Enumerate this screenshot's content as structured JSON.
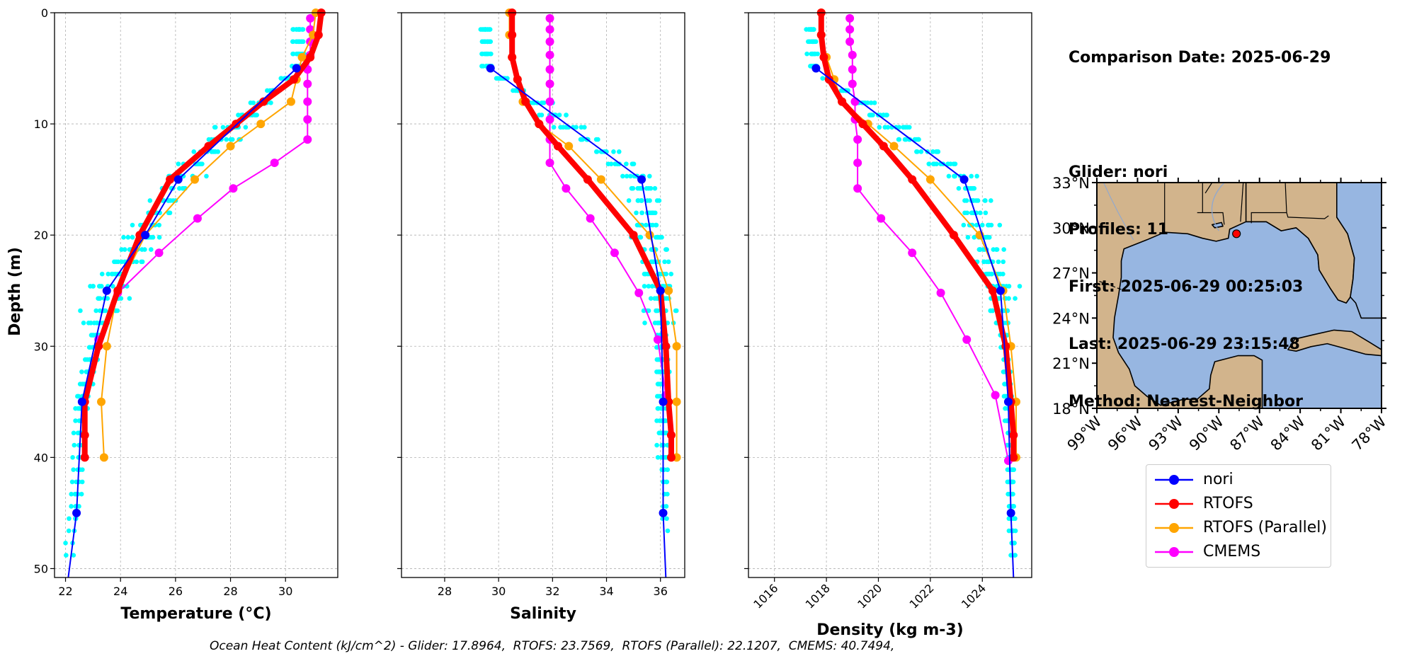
{
  "info": {
    "comparison_date": "Comparison Date: 2025-06-29",
    "glider": "Glider: nori",
    "profiles": "Profiles: 11",
    "first": "First: 2025-06-29 00:25:03",
    "last": "Last: 2025-06-29 23:15:48",
    "method": "Method: Nearest-Neighbor"
  },
  "footer": "Ocean Heat Content (kJ/cm^2) - Glider: 17.8964,  RTOFS: 23.7569,  RTOFS (Parallel): 22.1207,  CMEMS: 40.7494,",
  "legend": [
    {
      "name": "nori",
      "color": "#0000ff"
    },
    {
      "name": "RTOFS",
      "color": "#ff0000"
    },
    {
      "name": "RTOFS (Parallel)",
      "color": "#ffa500"
    },
    {
      "name": "CMEMS",
      "color": "#ff00ff"
    }
  ],
  "map": {
    "lat_ticks": [
      "33°N",
      "30°N",
      "27°N",
      "24°N",
      "21°N",
      "18°N"
    ],
    "lon_ticks": [
      "99°W",
      "96°W",
      "93°W",
      "90°W",
      "87°W",
      "84°W",
      "81°W",
      "78°W"
    ],
    "land_color": "#d2b48c",
    "ocean_color": "#97b6e1",
    "glider_marker": {
      "lon": -88.7,
      "lat": 29.6
    }
  },
  "chart_data": [
    {
      "type": "line",
      "xlabel": "Temperature (°C)",
      "ylabel": "Depth (m)",
      "xlim": [
        21.6,
        31.9
      ],
      "ylim": [
        50.8,
        0
      ],
      "xticks": [
        22,
        24,
        26,
        28,
        30
      ],
      "yticks": [
        0,
        10,
        20,
        30,
        40,
        50
      ],
      "grid": true,
      "series": [
        {
          "name": "nori",
          "x": [
            30.4,
            26.1,
            24.9,
            23.5,
            22.6,
            22.4,
            22.1
          ],
          "y": [
            5,
            15,
            20,
            25,
            35,
            45,
            50.8
          ]
        },
        {
          "name": "RTOFS",
          "x": [
            31.3,
            31.2,
            30.9,
            30.3,
            29.2,
            28.2,
            27.2,
            25.8,
            24.7,
            23.9,
            23.2,
            22.7,
            22.7,
            22.7
          ],
          "y": [
            0,
            2,
            4,
            6,
            8,
            10,
            12,
            15,
            20,
            25,
            30,
            35,
            38,
            40
          ]
        },
        {
          "name": "RTOFS (Parallel)",
          "x": [
            31.1,
            31.0,
            30.6,
            30.4,
            30.2,
            29.1,
            28.0,
            26.7,
            24.9,
            23.9,
            23.5,
            23.3,
            23.4
          ],
          "y": [
            0,
            2,
            4,
            6,
            8,
            10,
            12,
            15,
            20,
            25,
            30,
            35,
            40
          ]
        },
        {
          "name": "CMEMS",
          "x": [
            30.9,
            30.9,
            30.9,
            30.9,
            30.8,
            30.8,
            30.8,
            30.8,
            30.8,
            29.6,
            28.1,
            26.8,
            25.4,
            23.9,
            23.2
          ],
          "y": [
            0.5,
            1.5,
            2.6,
            3.8,
            5.1,
            6.4,
            8.0,
            9.6,
            11.4,
            13.5,
            15.8,
            18.5,
            21.6,
            25.2,
            29.4
          ]
        }
      ]
    },
    {
      "type": "line",
      "xlabel": "Salinity",
      "xlim": [
        26.4,
        36.9
      ],
      "ylim": [
        50.8,
        0
      ],
      "xticks": [
        28,
        30,
        32,
        34,
        36
      ],
      "grid": true,
      "series": [
        {
          "name": "nori",
          "x": [
            29.7,
            35.3,
            36.0,
            36.1,
            36.1,
            36.2
          ],
          "y": [
            5,
            15,
            25,
            35,
            45,
            50.8
          ]
        },
        {
          "name": "RTOFS",
          "x": [
            30.5,
            30.5,
            30.5,
            30.7,
            31.0,
            31.5,
            32.2,
            33.3,
            35.0,
            36.0,
            36.2,
            36.3,
            36.4,
            36.4
          ],
          "y": [
            0,
            2,
            4,
            6,
            8,
            10,
            12,
            15,
            20,
            25,
            30,
            35,
            38,
            40
          ]
        },
        {
          "name": "RTOFS (Parallel)",
          "x": [
            30.4,
            30.4,
            30.5,
            30.7,
            30.9,
            31.5,
            32.6,
            33.8,
            35.6,
            36.3,
            36.6,
            36.6,
            36.6
          ],
          "y": [
            0,
            2,
            4,
            6,
            8,
            10,
            12,
            15,
            20,
            25,
            30,
            35,
            40
          ]
        },
        {
          "name": "CMEMS",
          "x": [
            31.9,
            31.9,
            31.9,
            31.9,
            31.9,
            31.9,
            31.9,
            31.9,
            31.9,
            31.9,
            32.5,
            33.4,
            34.3,
            35.2,
            35.9,
            36.2
          ],
          "y": [
            0.5,
            1.5,
            2.6,
            3.8,
            5.1,
            6.4,
            8.0,
            9.6,
            11.4,
            13.5,
            15.8,
            18.5,
            21.6,
            25.2,
            29.4,
            34.4
          ]
        }
      ]
    },
    {
      "type": "line",
      "xlabel": "Density (kg m-3)",
      "xlim": [
        1015.0,
        1025.9
      ],
      "ylim": [
        50.8,
        0
      ],
      "xticks": [
        1016,
        1018,
        1020,
        1022,
        1024
      ],
      "grid": true,
      "series": [
        {
          "name": "nori",
          "x": [
            1017.6,
            1023.3,
            1024.7,
            1025.0,
            1025.1,
            1025.2
          ],
          "y": [
            5,
            15,
            25,
            35,
            45,
            50.8
          ]
        },
        {
          "name": "RTOFS",
          "x": [
            1017.8,
            1017.8,
            1017.9,
            1018.1,
            1018.6,
            1019.4,
            1020.2,
            1021.3,
            1022.9,
            1024.4,
            1024.9,
            1025.1,
            1025.2,
            1025.2
          ],
          "y": [
            0,
            2,
            4,
            6,
            8,
            10,
            12,
            15,
            20,
            25,
            30,
            35,
            38,
            40
          ]
        },
        {
          "name": "RTOFS (Parallel)",
          "x": [
            1017.8,
            1017.8,
            1018.0,
            1018.3,
            1018.6,
            1019.6,
            1020.6,
            1022.0,
            1023.9,
            1024.8,
            1025.1,
            1025.3,
            1025.3
          ],
          "y": [
            0,
            2,
            4,
            6,
            8,
            10,
            12,
            15,
            20,
            25,
            30,
            35,
            40
          ]
        },
        {
          "name": "CMEMS",
          "x": [
            1018.9,
            1018.9,
            1018.9,
            1019.0,
            1019.0,
            1019.0,
            1019.1,
            1019.1,
            1019.2,
            1019.2,
            1019.2,
            1020.1,
            1021.3,
            1022.4,
            1023.4,
            1024.5,
            1025.0
          ],
          "y": [
            0.5,
            1.5,
            2.6,
            3.8,
            5.1,
            6.4,
            8.0,
            9.6,
            11.4,
            13.5,
            15.8,
            18.5,
            21.6,
            25.2,
            29.4,
            34.4,
            40.3
          ]
        }
      ]
    }
  ]
}
